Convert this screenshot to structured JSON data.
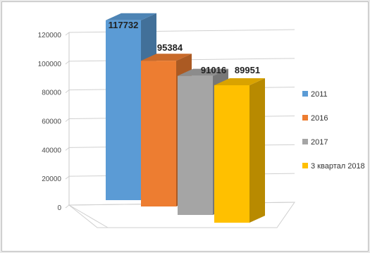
{
  "chart_data": {
    "type": "bar",
    "title": "",
    "xlabel": "",
    "ylabel": "",
    "ylim": [
      0,
      120000
    ],
    "yticks": [
      "0",
      "20000",
      "40000",
      "60000",
      "80000",
      "100000",
      "120000"
    ],
    "grid": true,
    "legend_position": "right",
    "series": [
      {
        "name": "2011",
        "value": 117732,
        "label": "117732",
        "color": "#5B9BD5"
      },
      {
        "name": "2016",
        "value": 95384,
        "label": "95384",
        "color": "#ED7D31"
      },
      {
        "name": "2017",
        "value": 91016,
        "label": "91016",
        "color": "#A5A5A5"
      },
      {
        "name": "3 квартал 2018",
        "value": 89951,
        "label": "89951",
        "color": "#FFC000"
      }
    ]
  }
}
